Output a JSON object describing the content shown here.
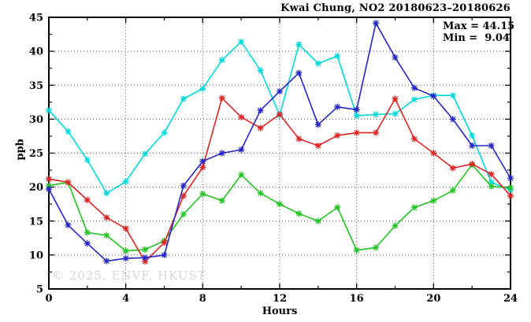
{
  "chart_data": {
    "type": "line",
    "title": "Kwai Chung, NO2 20180623–20180626",
    "xlabel": "Hours",
    "ylabel": "ppb",
    "xlim": [
      0,
      24
    ],
    "ylim": [
      5,
      45
    ],
    "x_ticks_major": [
      0,
      4,
      8,
      12,
      16,
      20,
      24
    ],
    "x_ticks_minor_step": 2,
    "y_ticks_major": [
      5,
      10,
      15,
      20,
      25,
      30,
      35,
      40,
      45
    ],
    "y_ticks_minor_step": 2.5,
    "grid": {
      "style": "dotted",
      "x_at": [
        4,
        8,
        12,
        16,
        20
      ],
      "y_at": [
        10,
        15,
        20,
        25,
        30,
        35,
        40
      ]
    },
    "legend": "none",
    "marker": "asterisk",
    "annotations": {
      "max_label": "Max = 44.15",
      "min_label": "Min =  9.04",
      "max_value": 44.15,
      "min_value": 9.04,
      "watermark": "© 2025, ENVF, HKUST"
    },
    "x": [
      0,
      1,
      2,
      3,
      4,
      5,
      6,
      7,
      8,
      9,
      10,
      11,
      12,
      13,
      14,
      15,
      16,
      17,
      18,
      19,
      20,
      21,
      22,
      23,
      24
    ],
    "series": [
      {
        "name": "cyan",
        "color": "#00d9d9",
        "values": [
          31.3,
          28.2,
          24.0,
          19.1,
          20.8,
          24.9,
          28.0,
          33.0,
          34.5,
          38.7,
          41.4,
          37.2,
          30.6,
          41.0,
          38.2,
          39.3,
          30.5,
          30.7,
          30.8,
          32.9,
          33.5,
          33.5,
          27.6,
          20.7,
          19.6
        ]
      },
      {
        "name": "green",
        "color": "#22c322",
        "values": [
          20.2,
          20.7,
          13.3,
          12.9,
          10.6,
          10.8,
          12.1,
          16.0,
          19.0,
          18.0,
          21.8,
          19.1,
          17.5,
          16.1,
          15.0,
          17.0,
          10.7,
          11.1,
          14.3,
          17.0,
          18.0,
          19.5,
          23.3,
          20.1,
          19.9
        ]
      },
      {
        "name": "red",
        "color": "#e02424",
        "values": [
          21.2,
          20.7,
          18.1,
          15.5,
          13.9,
          9.04,
          11.8,
          18.7,
          22.9,
          33.1,
          30.3,
          28.7,
          30.7,
          27.1,
          26.1,
          27.6,
          28.0,
          28.0,
          33.0,
          27.1,
          25.0,
          22.8,
          23.4,
          21.9,
          18.7
        ]
      },
      {
        "name": "blue",
        "color": "#2424cc",
        "values": [
          19.7,
          14.4,
          11.7,
          9.1,
          9.5,
          9.6,
          10.0,
          20.2,
          23.8,
          25.0,
          25.5,
          31.3,
          34.1,
          36.8,
          29.2,
          31.8,
          31.4,
          44.15,
          39.1,
          34.6,
          33.4,
          30.0,
          26.1,
          26.1,
          21.3
        ]
      }
    ]
  }
}
